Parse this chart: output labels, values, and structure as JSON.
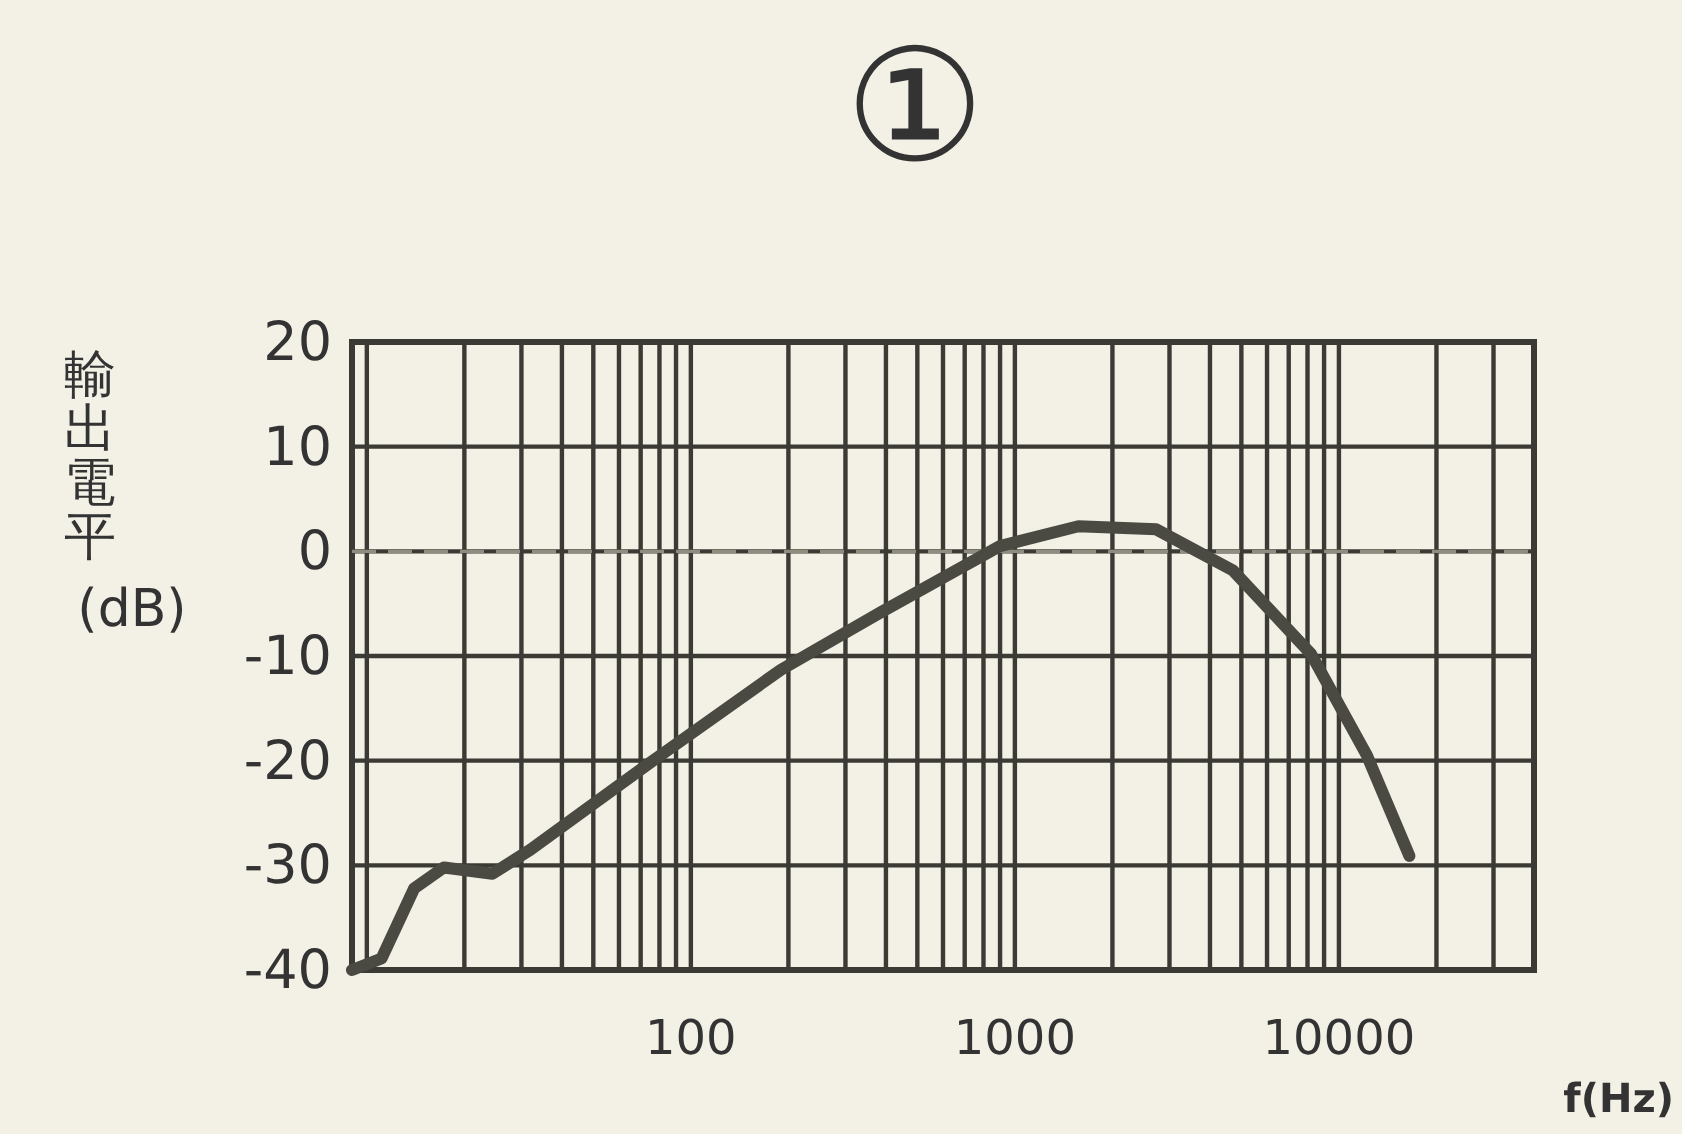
{
  "chart_data": {
    "type": "line",
    "title": "①",
    "ylabel": "輸出電平(dB)",
    "xlabel": "f(Hz)",
    "log": "x",
    "x": [
      9,
      11.1,
      14,
      17.3,
      24.4,
      32,
      74,
      190,
      387,
      900,
      1570,
      2730,
      4700,
      8200,
      12200,
      16500
    ],
    "series": [
      {
        "color": "#4a4a42",
        "values": [
          -40,
          -38.9,
          -32.2,
          -30.2,
          -30.8,
          -28.5,
          -20.3,
          -11.3,
          -5.8,
          0.5,
          2.4,
          2.1,
          -1.8,
          -9.8,
          -19.5,
          -29.1
        ]
      }
    ],
    "xlim": [
      9,
      40000
    ],
    "xticks": [
      100,
      1000,
      10000
    ],
    "ylim": [
      -40,
      20
    ],
    "yticks": [
      20,
      10,
      0,
      -10,
      -20,
      -30,
      -40
    ],
    "grid": true,
    "marker": "none",
    "line_style": "solid",
    "ref_lines": [
      {
        "axis": "y",
        "value": 0,
        "color": "#8f8d80",
        "line_style": "dashed"
      }
    ]
  }
}
